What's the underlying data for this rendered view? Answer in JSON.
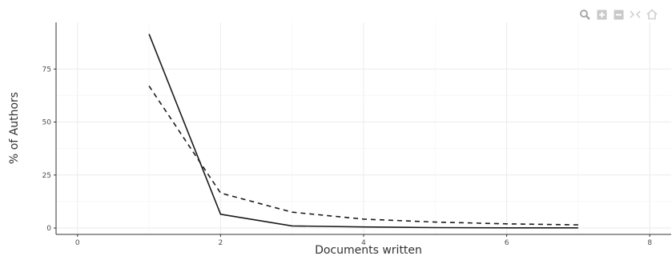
{
  "toolbar": {
    "icons": [
      "zoom-icon",
      "zoom-in-icon",
      "zoom-out-icon",
      "autoscale-icon",
      "home-icon"
    ]
  },
  "chart_data": {
    "type": "line",
    "title": "",
    "xlabel": "Documents written",
    "ylabel": "% of Authors",
    "xlim": [
      -0.3,
      8.3
    ],
    "ylim": [
      -3,
      97
    ],
    "xticks": [
      0,
      2,
      4,
      6,
      8
    ],
    "yticks": [
      0,
      25,
      50,
      75
    ],
    "grid": true,
    "series": [
      {
        "style": "solid",
        "x": [
          1,
          2,
          3,
          4,
          5,
          6,
          7
        ],
        "y": [
          91.5,
          6.5,
          1.0,
          0.5,
          0.2,
          0.1,
          0.1
        ]
      },
      {
        "style": "dashed",
        "x": [
          1,
          2,
          3,
          4,
          5,
          6,
          7
        ],
        "y": [
          67.0,
          16.5,
          7.5,
          4.2,
          2.8,
          2.0,
          1.5
        ]
      }
    ],
    "colors": {
      "line": "#1a1a1a",
      "grid": "#ebebeb",
      "axis": "#333333",
      "toolbar": "#a9a9a9"
    }
  }
}
